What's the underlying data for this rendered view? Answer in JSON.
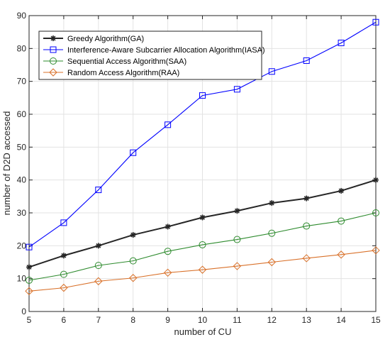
{
  "chart_data": {
    "type": "line",
    "title": "",
    "xlabel": "number of CU",
    "ylabel": "number of D2D accessed",
    "xlim": [
      5,
      15
    ],
    "ylim": [
      0,
      90
    ],
    "xticks": [
      5,
      6,
      7,
      8,
      9,
      10,
      11,
      12,
      13,
      14,
      15
    ],
    "yticks": [
      0,
      10,
      20,
      30,
      40,
      50,
      60,
      70,
      80,
      90
    ],
    "grid": true,
    "legend_position": "top-left",
    "x": [
      5,
      6,
      7,
      8,
      9,
      10,
      11,
      12,
      13,
      14,
      15
    ],
    "series": [
      {
        "name": "Greedy Algorithm(GA)",
        "color": "#262626",
        "marker": "asterisk",
        "values": [
          13.5,
          17,
          20,
          23.3,
          25.8,
          28.6,
          30.6,
          33,
          34.4,
          36.7,
          40
        ]
      },
      {
        "name": "Interference-Aware Subcarrier Allocation Algorithm(IASA)",
        "color": "#0000ff",
        "marker": "square",
        "values": [
          19.6,
          27,
          37,
          48.3,
          56.8,
          65.7,
          67.6,
          73,
          76.3,
          81.7,
          88
        ]
      },
      {
        "name": "Sequential Access Algorithm(SAA)",
        "color": "#2e8b2e",
        "marker": "circle",
        "values": [
          9.5,
          11.3,
          14,
          15.4,
          18.3,
          20.3,
          21.9,
          23.8,
          26,
          27.5,
          30
        ]
      },
      {
        "name": "Random Access Algorithm(RAA)",
        "color": "#d9712a",
        "marker": "diamond",
        "values": [
          6.2,
          7.2,
          9.2,
          10.2,
          11.8,
          12.7,
          13.8,
          15,
          16.2,
          17.3,
          18.6
        ]
      }
    ]
  }
}
